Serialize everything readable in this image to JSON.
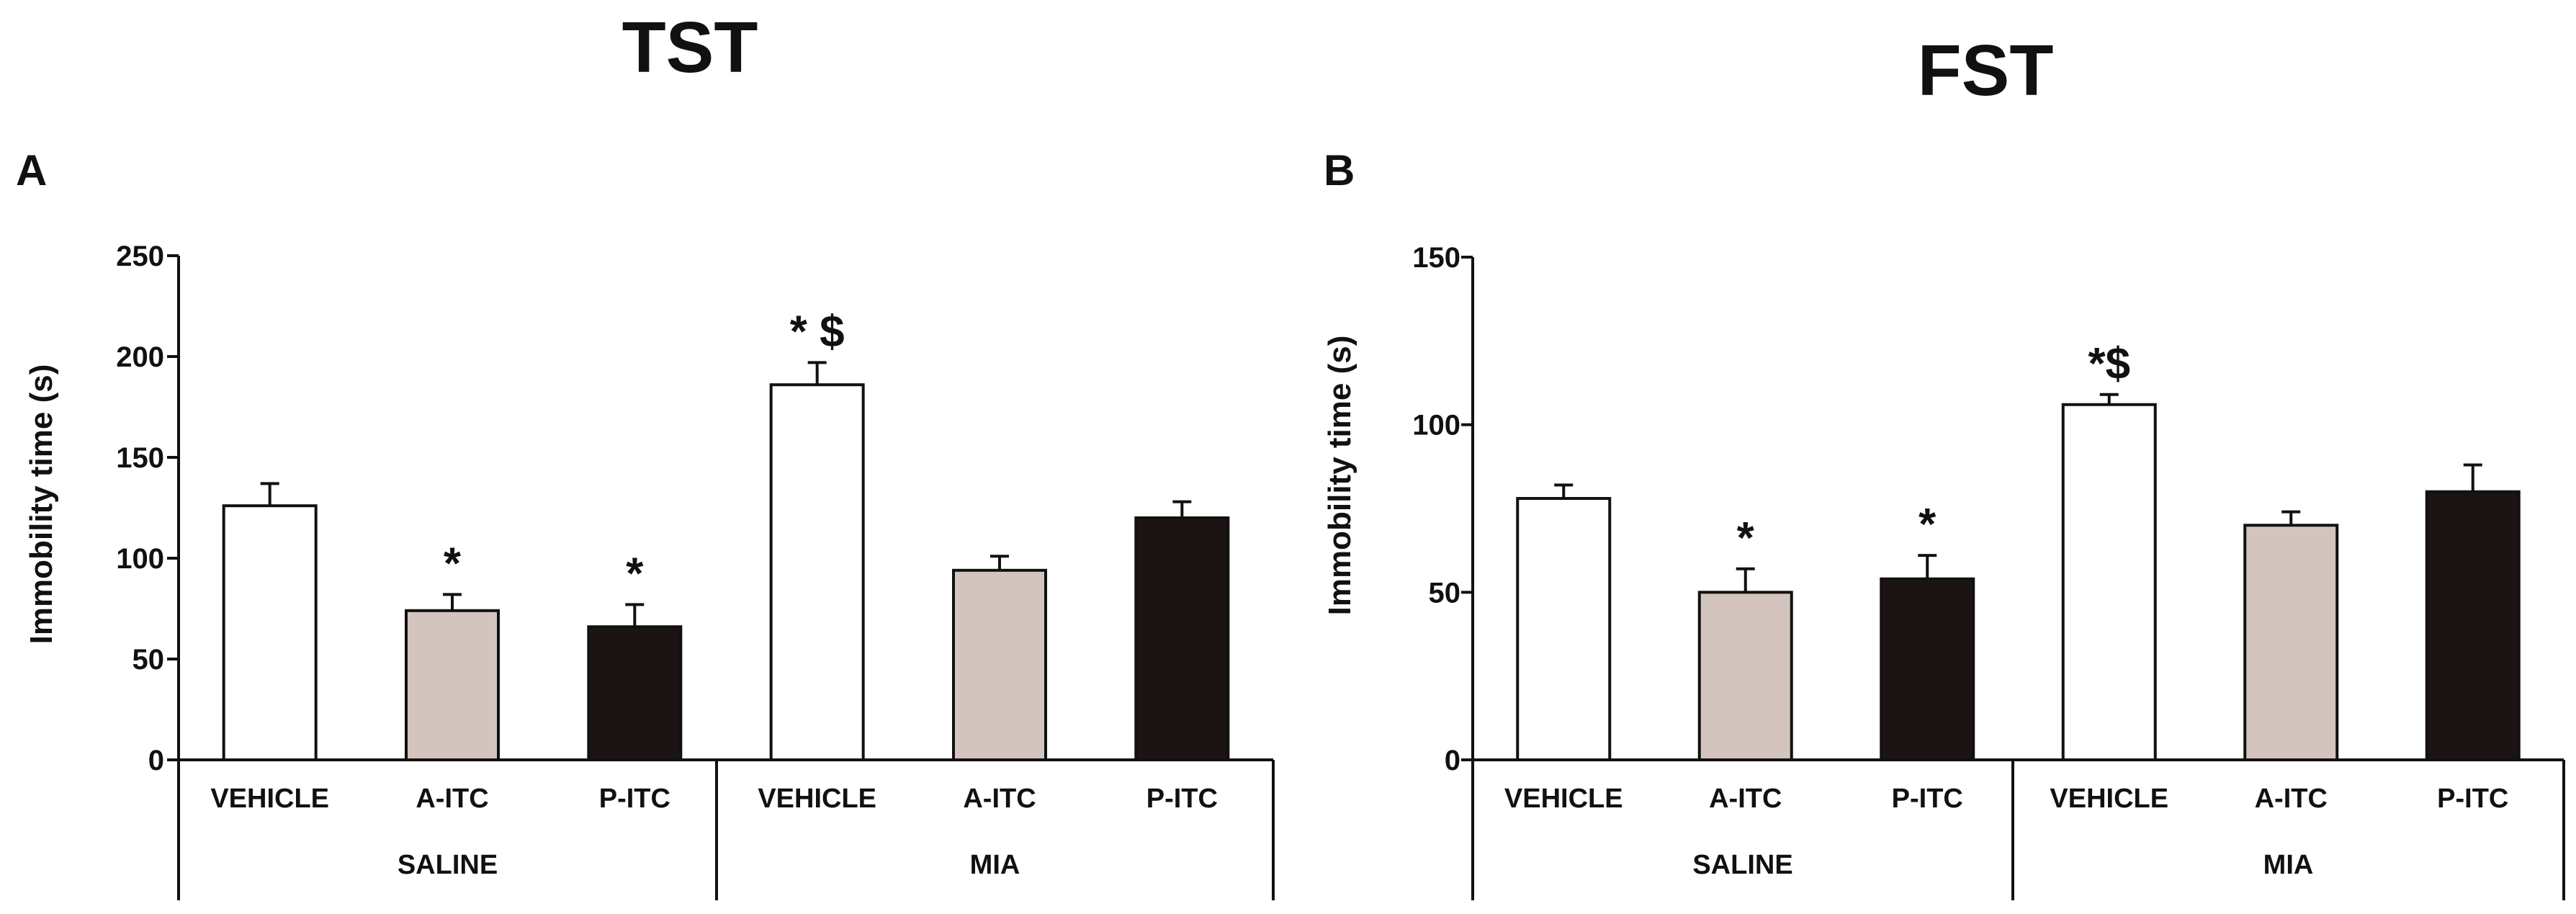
{
  "colors": {
    "vehicle": "#ffffff",
    "a_itc": "#d3c5bd",
    "p_itc": "#1c1413",
    "axis": "#111111"
  },
  "chart_data": [
    {
      "panel": "A",
      "title": "TST",
      "type": "bar",
      "ylabel": "Immobility time (s)",
      "ylim": [
        0,
        250
      ],
      "yticks": [
        0,
        50,
        100,
        150,
        200,
        250
      ],
      "groups": [
        {
          "label": "SALINE",
          "categories": [
            "VEHICLE",
            "A-ITC",
            "P-ITC"
          ]
        },
        {
          "label": "MIA",
          "categories": [
            "VEHICLE",
            "A-ITC",
            "P-ITC"
          ]
        }
      ],
      "categories": [
        "VEHICLE",
        "A-ITC",
        "P-ITC",
        "VEHICLE",
        "A-ITC",
        "P-ITC"
      ],
      "values": [
        126,
        74,
        66,
        186,
        94,
        120
      ],
      "errors": [
        11,
        8,
        11,
        11,
        7,
        8
      ],
      "fills": [
        "vehicle",
        "a_itc",
        "p_itc",
        "vehicle",
        "a_itc",
        "p_itc"
      ],
      "annotations": [
        "",
        "*",
        "*",
        "* $",
        "",
        ""
      ]
    },
    {
      "panel": "B",
      "title": "FST",
      "type": "bar",
      "ylabel": "Immobility time (s)",
      "ylim": [
        0,
        150
      ],
      "yticks": [
        0,
        50,
        100,
        150
      ],
      "groups": [
        {
          "label": "SALINE",
          "categories": [
            "VEHICLE",
            "A-ITC",
            "P-ITC"
          ]
        },
        {
          "label": "MIA",
          "categories": [
            "VEHICLE",
            "A-ITC",
            "P-ITC"
          ]
        }
      ],
      "categories": [
        "VEHICLE",
        "A-ITC",
        "P-ITC",
        "VEHICLE",
        "A-ITC",
        "P-ITC"
      ],
      "values": [
        78,
        50,
        54,
        106,
        70,
        80
      ],
      "errors": [
        4,
        7,
        7,
        3,
        4,
        8
      ],
      "fills": [
        "vehicle",
        "a_itc",
        "p_itc",
        "vehicle",
        "a_itc",
        "p_itc"
      ],
      "annotations": [
        "",
        "*",
        "*",
        "*$",
        "",
        ""
      ]
    }
  ]
}
